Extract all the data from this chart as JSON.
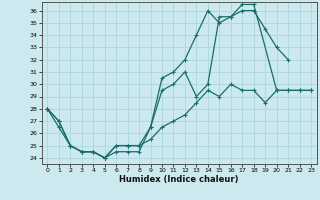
{
  "title": "",
  "xlabel": "Humidex (Indice chaleur)",
  "background_color": "#cce9ef",
  "grid_color": "#b0d8e0",
  "line_color": "#1a6e6a",
  "xlim": [
    -0.5,
    23.5
  ],
  "ylim": [
    23.5,
    36.7
  ],
  "yticks": [
    24,
    25,
    26,
    27,
    28,
    29,
    30,
    31,
    32,
    33,
    34,
    35,
    36
  ],
  "xticks": [
    0,
    1,
    2,
    3,
    4,
    5,
    6,
    7,
    8,
    9,
    10,
    11,
    12,
    13,
    14,
    15,
    16,
    17,
    18,
    19,
    20,
    21,
    22,
    23
  ],
  "curve1_x": [
    0,
    1,
    2,
    3,
    4,
    5,
    6,
    7,
    8,
    9,
    10,
    11,
    12,
    13,
    14,
    15,
    16,
    17,
    18,
    19,
    20,
    21
  ],
  "curve1_y": [
    28,
    27,
    25,
    24.5,
    24.5,
    24,
    24.5,
    24.5,
    24.5,
    26.5,
    30.5,
    31,
    32,
    34,
    36,
    35,
    35.5,
    36,
    36,
    34.5,
    33,
    32
  ],
  "curve2_x": [
    0,
    1,
    2,
    3,
    4,
    5,
    6,
    7,
    8,
    9,
    10,
    11,
    12,
    13,
    14,
    15,
    16,
    17,
    18,
    20,
    21,
    22,
    23
  ],
  "curve2_y": [
    28,
    27,
    25,
    24.5,
    24.5,
    24,
    25,
    25,
    25,
    26.5,
    29.5,
    30,
    31,
    29,
    30,
    35.5,
    35.5,
    36.5,
    36.5,
    29.5,
    29.5,
    29.5,
    29.5
  ],
  "curve3_x": [
    0,
    1,
    2,
    3,
    4,
    5,
    6,
    7,
    8,
    9,
    10,
    11,
    12,
    13,
    14,
    15,
    16,
    17,
    18,
    19,
    20,
    21,
    22,
    23
  ],
  "curve3_y": [
    28,
    26.5,
    25,
    24.5,
    24.5,
    24,
    25,
    25,
    25,
    25.5,
    26.5,
    27,
    27.5,
    28.5,
    29.5,
    29,
    30,
    29.5,
    29.5,
    28.5,
    29.5,
    29.5,
    29.5,
    29.5
  ]
}
